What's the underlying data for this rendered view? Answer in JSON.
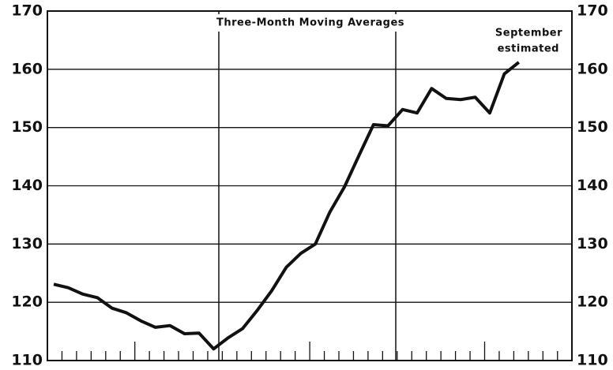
{
  "chart_data": {
    "type": "line",
    "title": "Three-Month Moving Averages",
    "annotation": [
      "September",
      "estimated"
    ],
    "categories": [
      null,
      null,
      null,
      null,
      null,
      null,
      null,
      null,
      null,
      null,
      null,
      null,
      null,
      null,
      null,
      null,
      null,
      null,
      null,
      null,
      null,
      null,
      null,
      null,
      null,
      null,
      null,
      null,
      null,
      null,
      null,
      null,
      null
    ],
    "series": [
      {
        "color": "#111111",
        "values": [
          123.1,
          122.5,
          121.4,
          120.8,
          119,
          118.2,
          116.8,
          115.7,
          116,
          114.6,
          114.7,
          112,
          113.9,
          115.5,
          118.6,
          122,
          126,
          128.4,
          130,
          135.5,
          139.8,
          145.2,
          150.5,
          150.3,
          153.1,
          152.5,
          156.7,
          155,
          154.8,
          155.2,
          152.5,
          159.2,
          161.2
        ]
      }
    ],
    "ylim": [
      110,
      170
    ],
    "yticks": [
      110,
      120,
      130,
      140,
      150,
      160,
      170
    ],
    "grid": true
  }
}
